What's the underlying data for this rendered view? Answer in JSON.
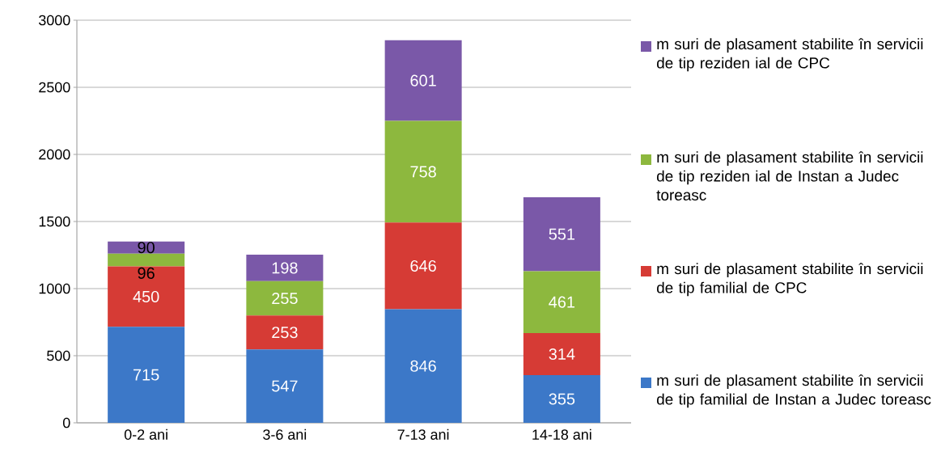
{
  "chart_data": {
    "type": "bar",
    "stacked": true,
    "categories": [
      "0-2 ani",
      "3-6 ani",
      "7-13 ani",
      "14-18 ani"
    ],
    "series": [
      {
        "name": "m suri de plasament stabilite în servicii de tip familial de Instan a Judec toreasc",
        "color": "#3c78c8",
        "values": [
          715,
          547,
          846,
          355
        ]
      },
      {
        "name": "m suri de plasament stabilite în servicii de tip familial de CPC",
        "color": "#d63b35",
        "values": [
          450,
          253,
          646,
          314
        ]
      },
      {
        "name": "m suri de plasament stabilite în servicii de tip reziden ial de Instan a Judec toreasc",
        "color": "#8db83e",
        "values": [
          96,
          255,
          758,
          461
        ]
      },
      {
        "name": "m suri de plasament stabilite în servicii de tip reziden ial de CPC",
        "color": "#7a58a8",
        "values": [
          90,
          198,
          601,
          551
        ]
      }
    ],
    "ylim": [
      0,
      3000
    ],
    "yticks": [
      0,
      500,
      1000,
      1500,
      2000,
      2500,
      3000
    ],
    "grid": "y",
    "legend": "right",
    "data_labels": true
  }
}
